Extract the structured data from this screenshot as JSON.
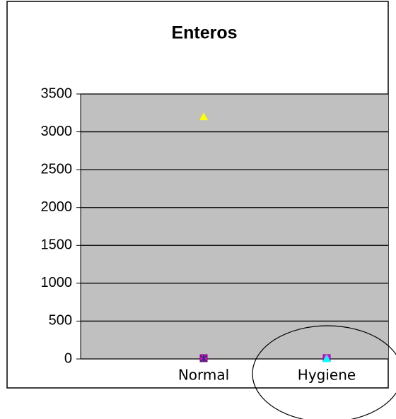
{
  "chart_data": {
    "type": "scatter",
    "title": "Enteros",
    "categories": [
      "Normal",
      "Hygiene"
    ],
    "series": [
      {
        "color": "#ff00ff",
        "marker": "square",
        "values": [
          10,
          10
        ]
      },
      {
        "color": "#ffff00",
        "marker": "triangle",
        "values": [
          3200,
          5
        ]
      },
      {
        "color": "#333366",
        "marker": "x",
        "values": [
          5,
          null
        ]
      },
      {
        "color": "#00ffff",
        "marker": "triangle",
        "values": [
          null,
          5
        ]
      }
    ],
    "ylim": [
      0,
      3500
    ],
    "yticks": [
      0,
      500,
      1000,
      1500,
      2000,
      2500,
      3000,
      3500
    ],
    "grid": true,
    "plot_background": "#c0c0c0"
  }
}
